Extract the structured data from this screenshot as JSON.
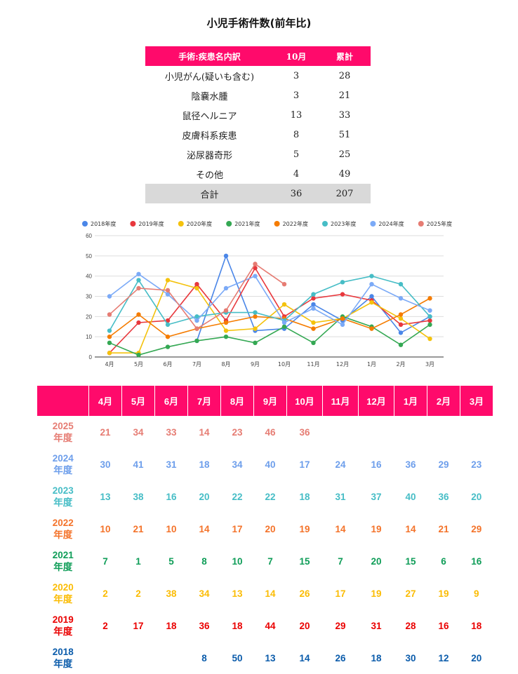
{
  "title": "小児手術件数(前年比)",
  "summary": {
    "headers": [
      "手術:疾患名内訳",
      "10月",
      "累計"
    ],
    "rows": [
      {
        "name": "小児がん(疑いも含む)",
        "oct": "3",
        "total": "28"
      },
      {
        "name": "陰嚢水腫",
        "oct": "3",
        "total": "21"
      },
      {
        "name": "鼠径ヘルニア",
        "oct": "13",
        "total": "33"
      },
      {
        "name": "皮膚科系疾患",
        "oct": "8",
        "total": "51"
      },
      {
        "name": "泌尿器奇形",
        "oct": "5",
        "total": "25"
      },
      {
        "name": "その他",
        "oct": "4",
        "total": "49"
      }
    ],
    "total_row": {
      "name": "合計",
      "oct": "36",
      "total": "207"
    }
  },
  "chart_data": {
    "type": "line",
    "categories": [
      "4月",
      "5月",
      "6月",
      "7月",
      "8月",
      "9月",
      "10月",
      "11月",
      "12月",
      "1月",
      "2月",
      "3月"
    ],
    "ylim": [
      0,
      60
    ],
    "yticks": [
      0,
      10,
      20,
      30,
      40,
      50,
      60
    ],
    "grid": true,
    "legend_position": "top",
    "series": [
      {
        "name": "2018年度",
        "color": "#4a86e8",
        "values": [
          null,
          null,
          null,
          8,
          50,
          13,
          14,
          26,
          18,
          30,
          12,
          20
        ]
      },
      {
        "name": "2019年度",
        "color": "#e8383d",
        "values": [
          2,
          17,
          18,
          36,
          18,
          44,
          20,
          29,
          31,
          28,
          16,
          18
        ]
      },
      {
        "name": "2020年度",
        "color": "#f4c20d",
        "values": [
          2,
          2,
          38,
          34,
          13,
          14,
          26,
          17,
          19,
          27,
          19,
          9
        ]
      },
      {
        "name": "2021年度",
        "color": "#34a853",
        "values": [
          7,
          1,
          5,
          8,
          10,
          7,
          15,
          7,
          20,
          15,
          6,
          16
        ]
      },
      {
        "name": "2022年度",
        "color": "#f57c00",
        "values": [
          10,
          21,
          10,
          14,
          17,
          20,
          19,
          14,
          19,
          14,
          21,
          29
        ]
      },
      {
        "name": "2023年度",
        "color": "#46bdc6",
        "values": [
          13,
          38,
          16,
          20,
          22,
          22,
          18,
          31,
          37,
          40,
          36,
          20
        ]
      },
      {
        "name": "2024年度",
        "color": "#7baaf7",
        "values": [
          30,
          41,
          31,
          18,
          34,
          40,
          17,
          24,
          16,
          36,
          29,
          23
        ]
      },
      {
        "name": "2025年度",
        "color": "#e67c73",
        "values": [
          21,
          34,
          33,
          14,
          23,
          46,
          36,
          null,
          null,
          null,
          null,
          null
        ]
      }
    ]
  },
  "data_table": {
    "months": [
      "4月",
      "5月",
      "6月",
      "7月",
      "8月",
      "9月",
      "10月",
      "11月",
      "12月",
      "1月",
      "2月",
      "3月"
    ],
    "rows": [
      {
        "label": [
          "2025",
          "年度"
        ],
        "color": "#e67c73",
        "values": [
          "21",
          "34",
          "33",
          "14",
          "23",
          "46",
          "36",
          "",
          "",
          "",
          "",
          ""
        ]
      },
      {
        "label": [
          "2024",
          "年度"
        ],
        "color": "#6d9eeb",
        "values": [
          "30",
          "41",
          "31",
          "18",
          "34",
          "40",
          "17",
          "24",
          "16",
          "36",
          "29",
          "23"
        ]
      },
      {
        "label": [
          "2023",
          "年度"
        ],
        "color": "#46bdc6",
        "values": [
          "13",
          "38",
          "16",
          "20",
          "22",
          "22",
          "18",
          "31",
          "37",
          "40",
          "36",
          "20"
        ]
      },
      {
        "label": [
          "2022",
          "年度"
        ],
        "color": "#f4732a",
        "values": [
          "10",
          "21",
          "10",
          "14",
          "17",
          "20",
          "19",
          "14",
          "19",
          "14",
          "21",
          "29"
        ]
      },
      {
        "label": [
          "2021",
          "年度"
        ],
        "color": "#0f9d58",
        "values": [
          "7",
          "1",
          "5",
          "8",
          "10",
          "7",
          "15",
          "7",
          "20",
          "15",
          "6",
          "16"
        ]
      },
      {
        "label": [
          "2020",
          "年度"
        ],
        "color": "#fbbc04",
        "values": [
          "2",
          "2",
          "38",
          "34",
          "13",
          "14",
          "26",
          "17",
          "19",
          "27",
          "19",
          "9"
        ]
      },
      {
        "label": [
          "2019",
          "年度"
        ],
        "color": "#ea0000",
        "values": [
          "2",
          "17",
          "18",
          "36",
          "18",
          "44",
          "20",
          "29",
          "31",
          "28",
          "16",
          "18"
        ]
      },
      {
        "label": [
          "2018",
          "年度"
        ],
        "color": "#0b5cab",
        "values": [
          "",
          "",
          "",
          "8",
          "50",
          "13",
          "14",
          "26",
          "18",
          "30",
          "12",
          "20"
        ]
      }
    ]
  }
}
